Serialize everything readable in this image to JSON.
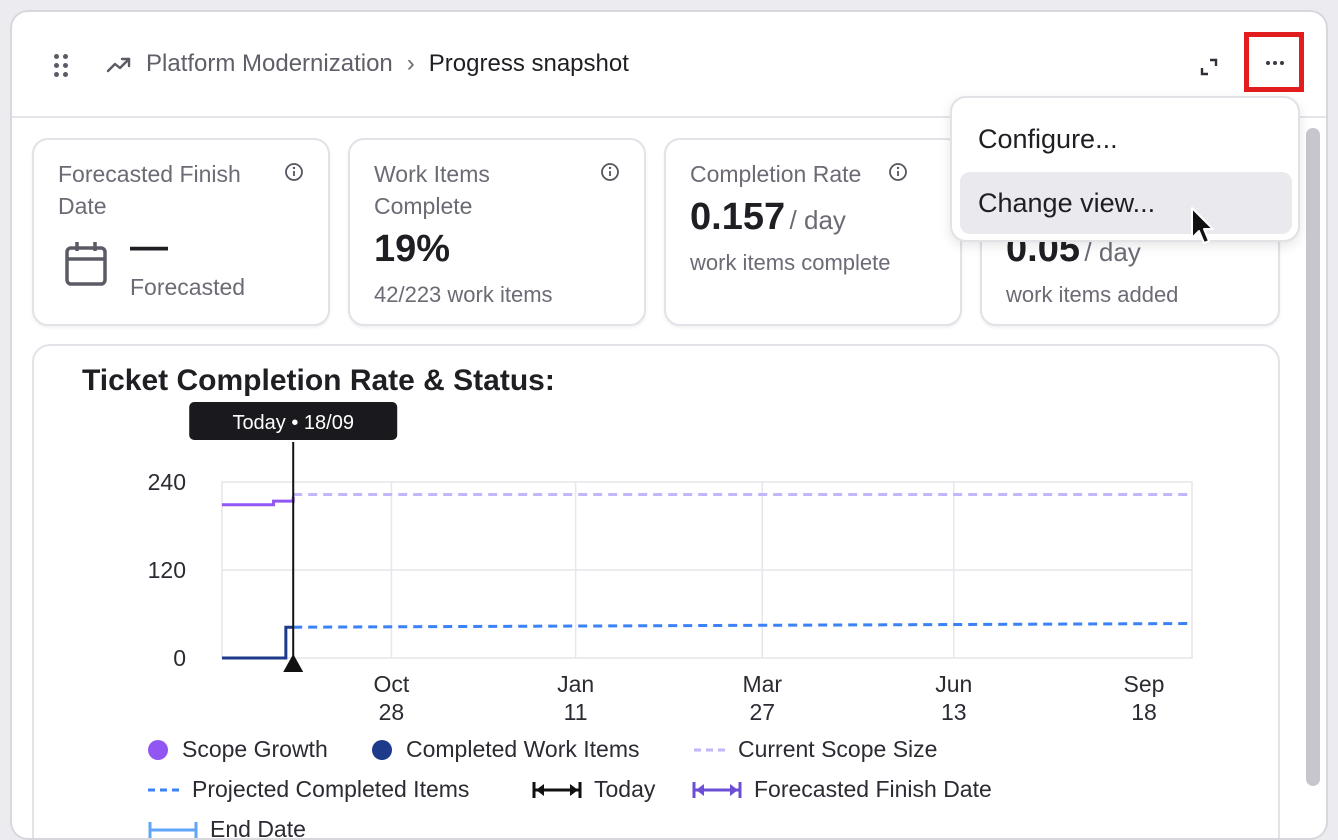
{
  "header": {
    "breadcrumb_parent": "Platform Modernization",
    "breadcrumb_sep": "›",
    "breadcrumb_current": "Progress snapshot"
  },
  "cards": {
    "finish": {
      "label": "Forecasted Finish Date",
      "value": "—",
      "sub": "Forecasted"
    },
    "items": {
      "label": "Work Items Complete",
      "value": "19%",
      "sub": "42/223 work items"
    },
    "rate": {
      "label": "Completion Rate",
      "value": "0.157",
      "unit": "/ day",
      "sub": "work items complete"
    },
    "added": {
      "value": "0.05",
      "unit": "/ day",
      "sub": "work items added"
    }
  },
  "menu": {
    "items": [
      "Configure...",
      "Change view..."
    ],
    "highlighted": 1
  },
  "colors": {
    "accent_red": "#e11d1d",
    "scope_growth": "#9256f2",
    "completed": "#1e3a8a",
    "current_scope": "#c4b5fd",
    "projected": "#3b82f6",
    "today": "#111111",
    "forecast_finish": "#6d4fd6",
    "end_date": "#60a5fa"
  },
  "chart_data": {
    "type": "line",
    "title": "Ticket Completion Rate & Status:",
    "today_label": "Today • 18/09",
    "yticks": [
      "240",
      "120",
      "0"
    ],
    "xticks": [
      [
        "Oct",
        "28"
      ],
      [
        "Jan",
        "11"
      ],
      [
        "Mar",
        "27"
      ],
      [
        "Jun",
        "13"
      ],
      [
        "Sep",
        "18"
      ]
    ],
    "ylim": [
      0,
      240
    ],
    "x_range": [
      "2023-08-20",
      "2024-09-18"
    ],
    "today": "2023-09-18",
    "grid": true,
    "legend_position": "bottom",
    "series": [
      {
        "name": "Scope Growth",
        "style": "step",
        "x": [
          "2023-08-20",
          "2023-09-10",
          "2023-09-18"
        ],
        "y": [
          209,
          214,
          220
        ]
      },
      {
        "name": "Completed Work Items",
        "style": "step",
        "x": [
          "2023-08-20",
          "2023-09-15",
          "2023-09-18"
        ],
        "y": [
          0,
          42,
          42
        ]
      },
      {
        "name": "Current Scope Size",
        "style": "dashed",
        "x": [
          "2023-09-18",
          "2024-09-18"
        ],
        "y": [
          223,
          223
        ]
      },
      {
        "name": "Projected Completed Items",
        "style": "dashed",
        "x": [
          "2023-09-18",
          "2024-09-18"
        ],
        "y": [
          42,
          47
        ]
      }
    ],
    "legend": [
      "Scope Growth",
      "Completed Work Items",
      "Current Scope Size",
      "Projected Completed Items",
      "Today",
      "Forecasted Finish Date",
      "End Date"
    ]
  }
}
